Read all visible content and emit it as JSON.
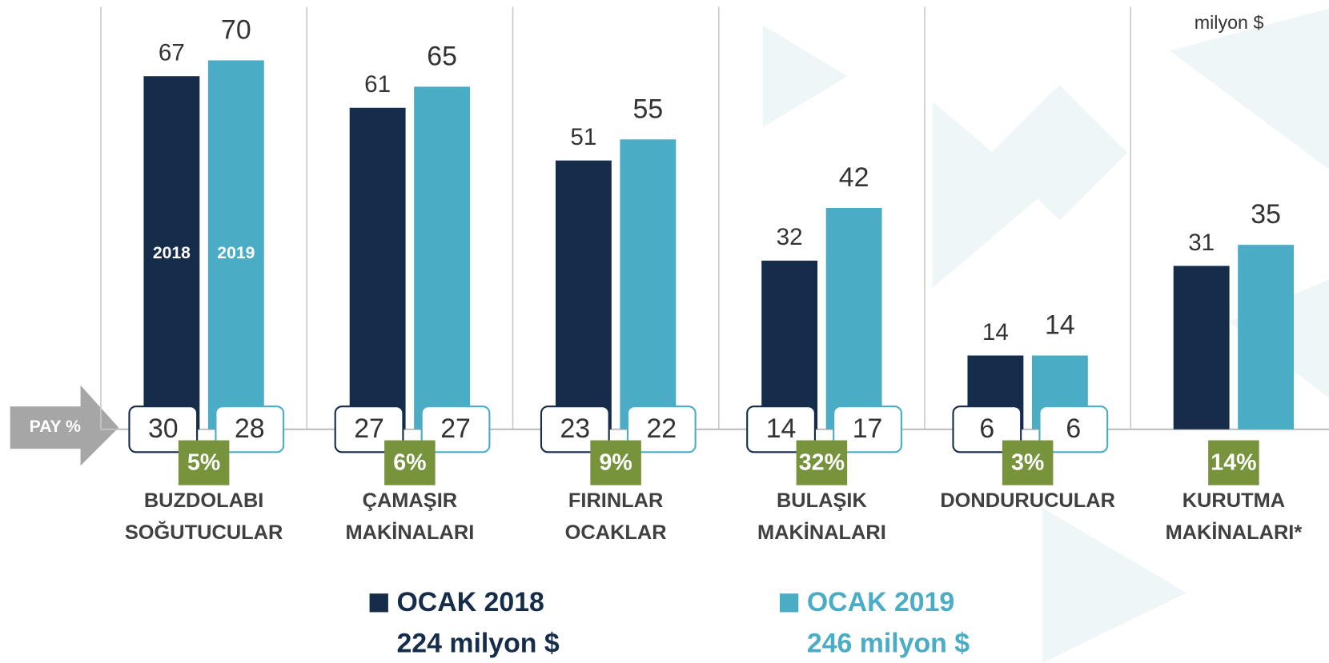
{
  "chart_data": {
    "type": "bar",
    "unit_label": "milyon $",
    "share_label": "PAY %",
    "categories": [
      [
        "BUZDOLABI",
        "SOĞUTUCULAR"
      ],
      [
        "ÇAMAŞIR",
        "MAKİNALARI"
      ],
      [
        "FIRINLAR",
        "OCAKLAR"
      ],
      [
        "BULAŞIK",
        "MAKİNALARI"
      ],
      [
        "DONDURUCULAR"
      ],
      [
        "KURUTMA",
        "MAKİNALARI*"
      ]
    ],
    "series": [
      {
        "name": "OCAK 2018",
        "bar_label": "2018",
        "total_label": "224 milyon $",
        "color": "#152c4a",
        "values": [
          67,
          61,
          51,
          32,
          14,
          31
        ],
        "shares": [
          30,
          27,
          23,
          14,
          6,
          null
        ]
      },
      {
        "name": "OCAK 2019",
        "bar_label": "2019",
        "total_label": "246 milyon $",
        "color": "#4bacc6",
        "values": [
          70,
          65,
          55,
          42,
          14,
          35
        ],
        "shares": [
          28,
          27,
          22,
          17,
          6,
          null
        ]
      }
    ],
    "growth": [
      5,
      6,
      9,
      32,
      3,
      14
    ],
    "growth_labels": [
      "5%",
      "6%",
      "9%",
      "32%",
      "3%",
      "14%"
    ],
    "growth_color": "#77933c",
    "ylim": [
      0,
      80
    ]
  }
}
